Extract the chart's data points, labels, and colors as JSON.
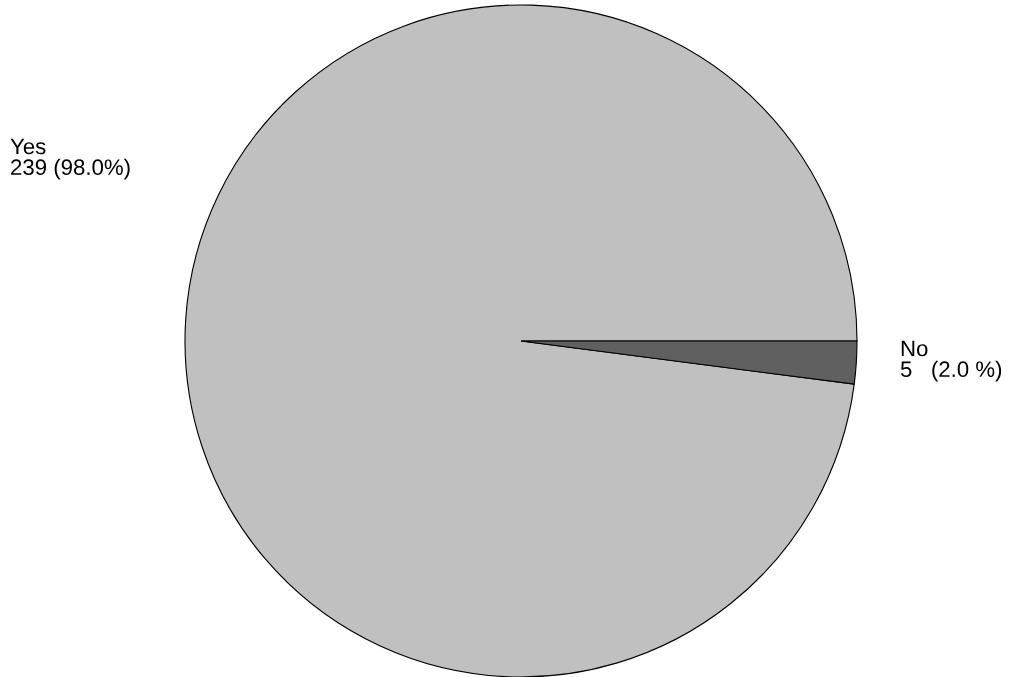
{
  "chart_data": {
    "type": "pie",
    "categories": [
      "Yes",
      "No"
    ],
    "values": [
      239,
      5
    ],
    "colors": [
      "#c0c0c0",
      "#606060"
    ],
    "value_labels": [
      "239 (98.0%)",
      "5   (2.0 %)"
    ]
  }
}
